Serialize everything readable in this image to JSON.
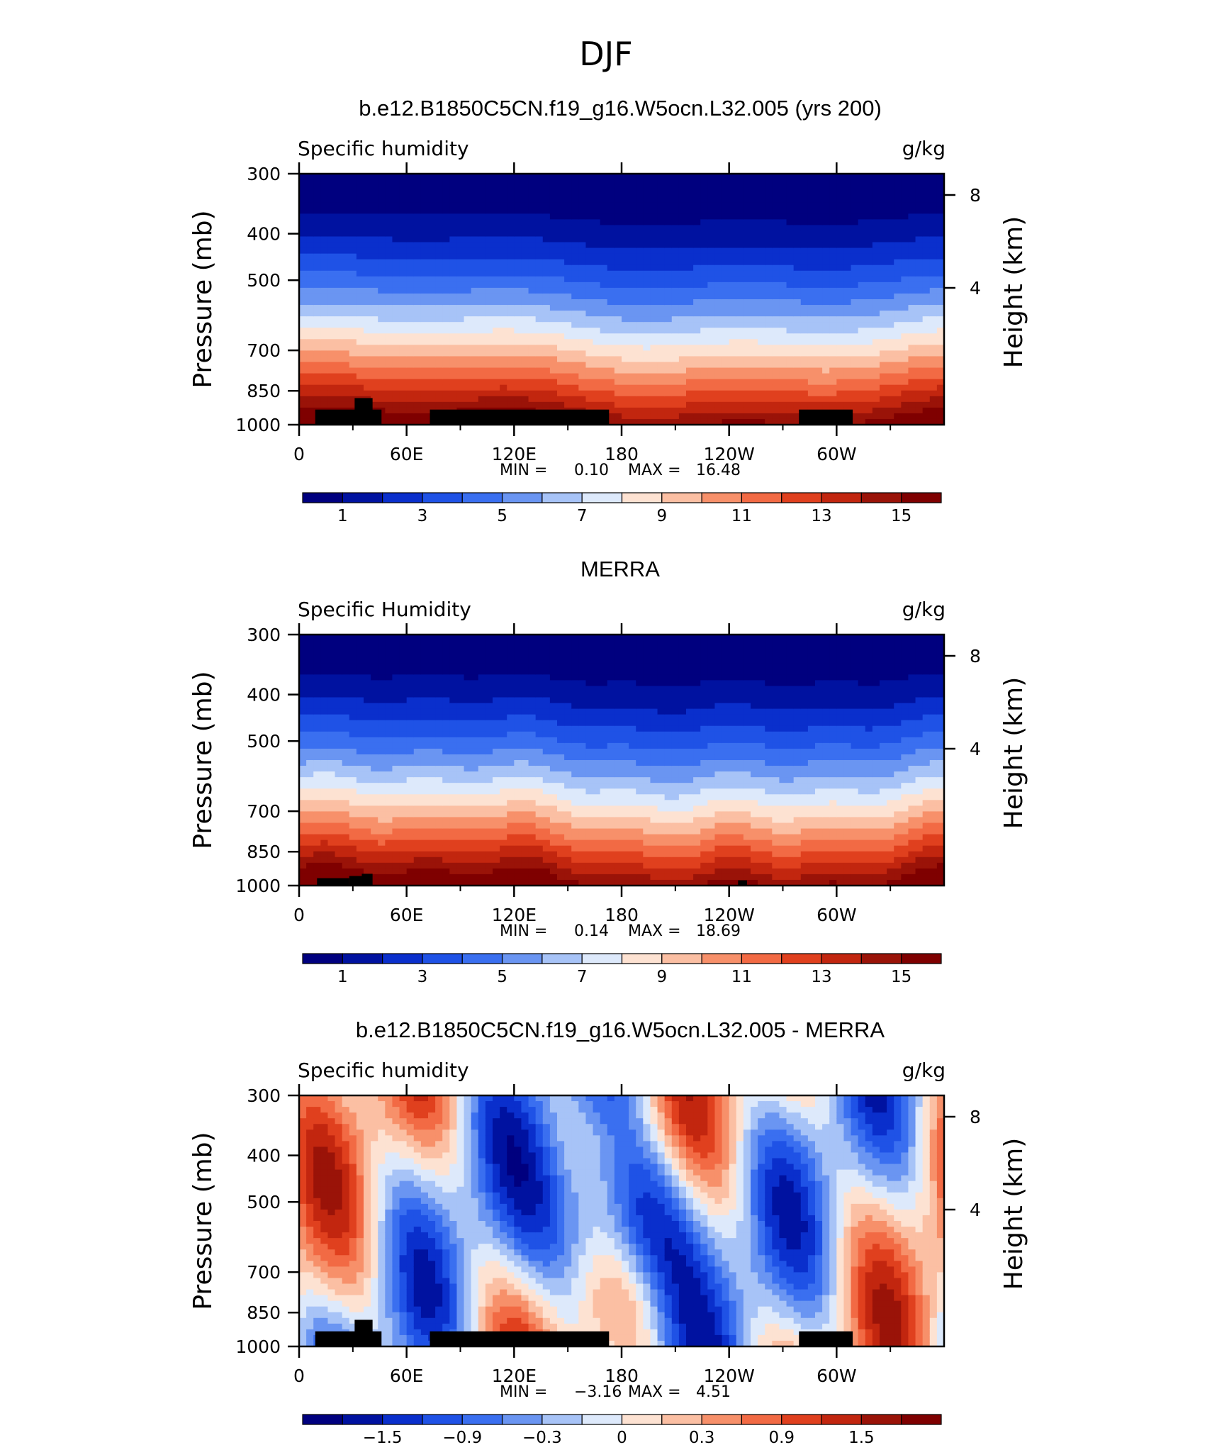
{
  "page": {
    "main_title": "DJF"
  },
  "colors": {
    "abs_levels": [
      "#00007f",
      "#0012a0",
      "#0a2fcc",
      "#1f52e6",
      "#3a6ff0",
      "#6a95f2",
      "#a7c3f7",
      "#dde9fb",
      "#fde2d2",
      "#fbbfa3",
      "#f7906a",
      "#f26a44",
      "#e0401e",
      "#c2260f",
      "#9a1308",
      "#7f0000"
    ],
    "diff_levels": [
      "#00007f",
      "#0012a0",
      "#0a2fcc",
      "#1f52e6",
      "#3a6ff0",
      "#6a95f2",
      "#a7c3f7",
      "#dde9fb",
      "#fde2d2",
      "#fbbfa3",
      "#f7906a",
      "#f26a44",
      "#e0401e",
      "#c2260f",
      "#9a1308",
      "#7f0000"
    ],
    "land": "#000000"
  },
  "chart_data": [
    {
      "type": "heatmap",
      "title": "b.e12.B1850C5CN.f19_g16.W5ocn.L32.005 (yrs 200)",
      "left_string": "Specific humidity",
      "right_string": "g/kg",
      "ylabel": "Pressure (mb)",
      "ylabel_right": "Height (km)",
      "x_ticks": [
        "0",
        "60E",
        "120E",
        "180",
        "120W",
        "60W"
      ],
      "y_ticks": [
        "300",
        "400",
        "500",
        "700",
        "850",
        "1000"
      ],
      "y2_ticks": [
        "8",
        "4"
      ],
      "stats": {
        "min_label": "MIN =",
        "min": "0.10",
        "max_label": "MAX =",
        "max": "16.48"
      },
      "colorbar_labels": [
        "1",
        "3",
        "5",
        "7",
        "9",
        "11",
        "13",
        "15"
      ],
      "xlim": [
        0,
        360
      ],
      "ylim": [
        1000,
        300
      ],
      "y_scale": "log"
    },
    {
      "type": "heatmap",
      "title": "MERRA",
      "left_string": "Specific Humidity",
      "right_string": "g/kg",
      "ylabel": "Pressure (mb)",
      "ylabel_right": "Height (km)",
      "x_ticks": [
        "0",
        "60E",
        "120E",
        "180",
        "120W",
        "60W"
      ],
      "y_ticks": [
        "300",
        "400",
        "500",
        "700",
        "850",
        "1000"
      ],
      "y2_ticks": [
        "8",
        "4"
      ],
      "stats": {
        "min_label": "MIN =",
        "min": "0.14",
        "max_label": "MAX =",
        "max": "18.69"
      },
      "colorbar_labels": [
        "1",
        "3",
        "5",
        "7",
        "9",
        "11",
        "13",
        "15"
      ],
      "xlim": [
        0,
        360
      ],
      "ylim": [
        1000,
        300
      ],
      "y_scale": "log"
    },
    {
      "type": "heatmap",
      "title": "b.e12.B1850C5CN.f19_g16.W5ocn.L32.005 - MERRA",
      "left_string": "Specific humidity",
      "right_string": "g/kg",
      "ylabel": "Pressure (mb)",
      "ylabel_right": "Height (km)",
      "x_ticks": [
        "0",
        "60E",
        "120E",
        "180",
        "120W",
        "60W"
      ],
      "y_ticks": [
        "300",
        "400",
        "500",
        "700",
        "850",
        "1000"
      ],
      "y2_ticks": [
        "8",
        "4"
      ],
      "stats": {
        "min_label": "MIN =",
        "min": "−3.16",
        "max_label": "MAX =",
        "max": "4.51"
      },
      "colorbar_labels": [
        "−1.5",
        "−0.9",
        "−0.3",
        "0",
        "0.3",
        "0.9",
        "1.5"
      ],
      "xlim": [
        0,
        360
      ],
      "ylim": [
        1000,
        300
      ],
      "y_scale": "log"
    }
  ]
}
